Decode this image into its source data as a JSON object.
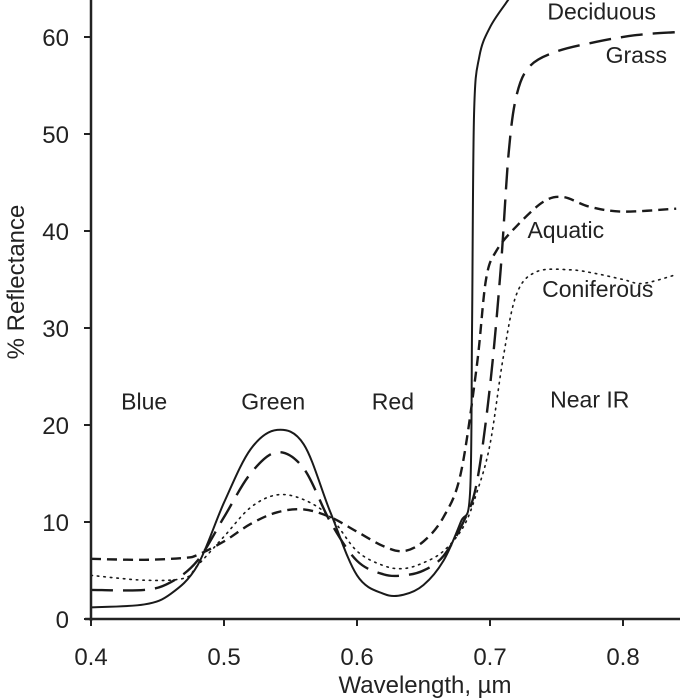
{
  "chart_data": {
    "type": "line",
    "xlabel": "Wavelength, µm",
    "ylabel": "% Reflectance",
    "xlim": [
      0.331,
      0.84
    ],
    "ylim": [
      0,
      63.8
    ],
    "xticks": [
      "0.4",
      "0.5",
      "0.6",
      "0.7",
      "0.8"
    ],
    "yticks": [
      "0",
      "10",
      "20",
      "30",
      "40",
      "50",
      "60"
    ],
    "grid": false,
    "region_labels": [
      {
        "text": "Blue",
        "x": 0.44,
        "y": 21.6
      },
      {
        "text": "Green",
        "x": 0.537,
        "y": 21.6
      },
      {
        "text": "Red",
        "x": 0.627,
        "y": 21.6
      },
      {
        "text": "Near IR",
        "x": 0.775,
        "y": 21.8
      }
    ],
    "series": [
      {
        "name": "Deciduous",
        "style": "solid",
        "x": [
          0.4,
          0.44,
          0.46,
          0.48,
          0.5,
          0.52,
          0.54,
          0.56,
          0.58,
          0.6,
          0.62,
          0.635,
          0.65,
          0.665,
          0.678,
          0.685,
          0.6865,
          0.688,
          0.692,
          0.7,
          0.712,
          0.72
        ],
        "y": [
          1.2,
          1.5,
          2.6,
          5.5,
          12,
          17.5,
          19.5,
          18,
          11,
          4.5,
          2.6,
          2.5,
          3.5,
          6,
          10,
          13,
          30,
          52,
          58,
          61,
          63.5,
          65
        ]
      },
      {
        "name": "Grass",
        "style": "long-dash",
        "x": [
          0.4,
          0.44,
          0.46,
          0.48,
          0.5,
          0.52,
          0.54,
          0.56,
          0.58,
          0.6,
          0.62,
          0.635,
          0.65,
          0.665,
          0.68,
          0.69,
          0.7,
          0.708,
          0.714,
          0.72,
          0.73,
          0.75,
          0.78,
          0.81,
          0.84
        ],
        "y": [
          3,
          3,
          3.8,
          6,
          10.5,
          15,
          17.2,
          15.5,
          10,
          6,
          4.6,
          4.5,
          5,
          6.5,
          10,
          14,
          24,
          36,
          48,
          54,
          57,
          58.5,
          59.5,
          60.2,
          60.5
        ]
      },
      {
        "name": "Aquatic",
        "style": "short-dash",
        "x": [
          0.4,
          0.44,
          0.47,
          0.48,
          0.5,
          0.52,
          0.54,
          0.56,
          0.58,
          0.6,
          0.62,
          0.635,
          0.65,
          0.665,
          0.678,
          0.69,
          0.697,
          0.705,
          0.72,
          0.74,
          0.755,
          0.775,
          0.8,
          0.84
        ],
        "y": [
          6.2,
          6.1,
          6.3,
          6.6,
          8,
          9.8,
          11,
          11.3,
          10.5,
          9,
          7.5,
          7,
          8,
          10.5,
          15,
          26,
          35,
          38,
          40.5,
          43,
          43.5,
          42.5,
          42,
          42.3
        ]
      },
      {
        "name": "Coniferous",
        "style": "dotted",
        "x": [
          0.4,
          0.44,
          0.47,
          0.48,
          0.5,
          0.52,
          0.54,
          0.56,
          0.58,
          0.6,
          0.62,
          0.635,
          0.65,
          0.665,
          0.68,
          0.69,
          0.7,
          0.71,
          0.72,
          0.735,
          0.76,
          0.78,
          0.8,
          0.815,
          0.84
        ],
        "y": [
          4.5,
          4,
          4.2,
          5.5,
          8.5,
          11.5,
          12.8,
          12.3,
          10.5,
          7,
          5.5,
          5.2,
          5.8,
          7,
          9.5,
          13,
          18,
          27,
          33.5,
          35.8,
          36,
          35.6,
          35,
          34.6,
          35.5
        ]
      }
    ],
    "series_labels": [
      {
        "text": "Deciduous",
        "x": 0.784,
        "y": 61.8
      },
      {
        "text": "Grass",
        "x": 0.81,
        "y": 57.3
      },
      {
        "text": "Aquatic",
        "x": 0.757,
        "y": 39.3
      },
      {
        "text": "Coniferous",
        "x": 0.781,
        "y": 33.2
      }
    ]
  }
}
